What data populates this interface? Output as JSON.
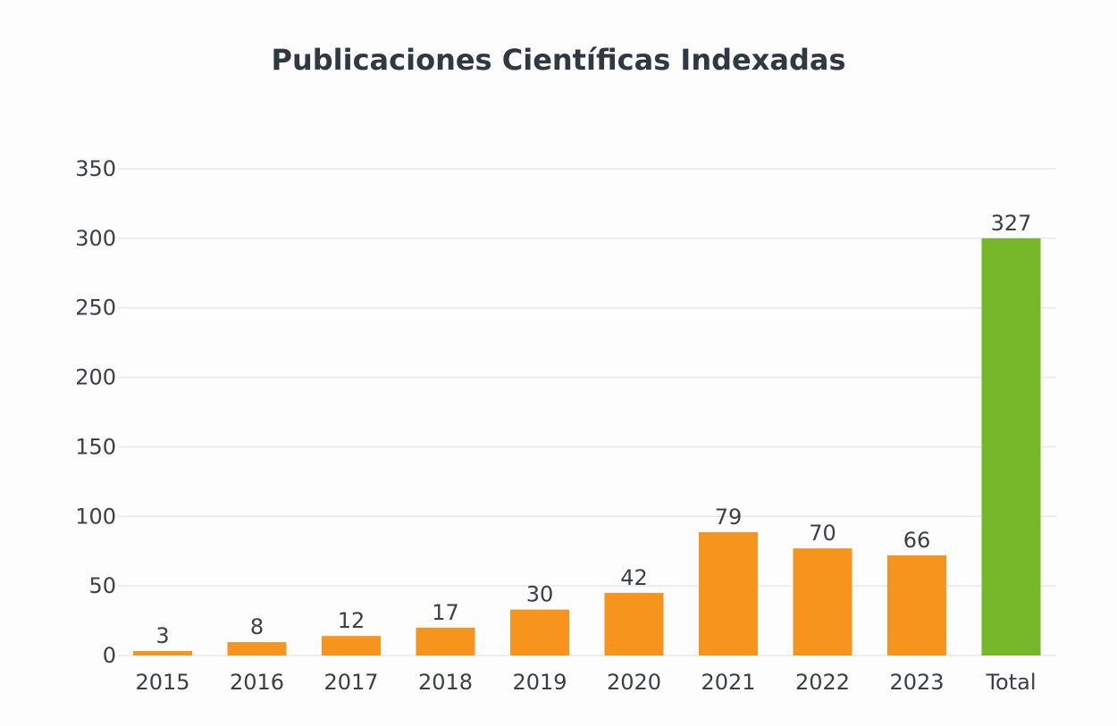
{
  "chart_data": {
    "type": "bar",
    "title": "Publicaciones Científicas Indexadas",
    "xlabel": "",
    "ylabel": "",
    "categories": [
      "2015",
      "2016",
      "2017",
      "2018",
      "2019",
      "2020",
      "2021",
      "2022",
      "2023",
      "Total"
    ],
    "values": [
      3,
      8,
      12,
      17,
      30,
      42,
      79,
      70,
      66,
      327
    ],
    "bar_fill_levels": [
      3.2,
      9.6,
      14,
      20,
      33,
      45,
      88.6,
      77,
      72,
      300
    ],
    "data_labels": [
      "3",
      "8",
      "12",
      "17",
      "30",
      "42",
      "79",
      "70",
      "66",
      "327"
    ],
    "bar_colors": [
      "#F7941E",
      "#F7941E",
      "#F7941E",
      "#F7941E",
      "#F7941E",
      "#F7941E",
      "#F7941E",
      "#F7941E",
      "#F7941E",
      "#76B82A"
    ],
    "ylim": [
      0,
      350
    ],
    "yticks": [
      0,
      50,
      100,
      150,
      200,
      250,
      300,
      350
    ],
    "ytick_labels": [
      "0",
      "50",
      "100",
      "150",
      "200",
      "250",
      "300",
      "350"
    ],
    "grid": true,
    "legend": "none"
  }
}
